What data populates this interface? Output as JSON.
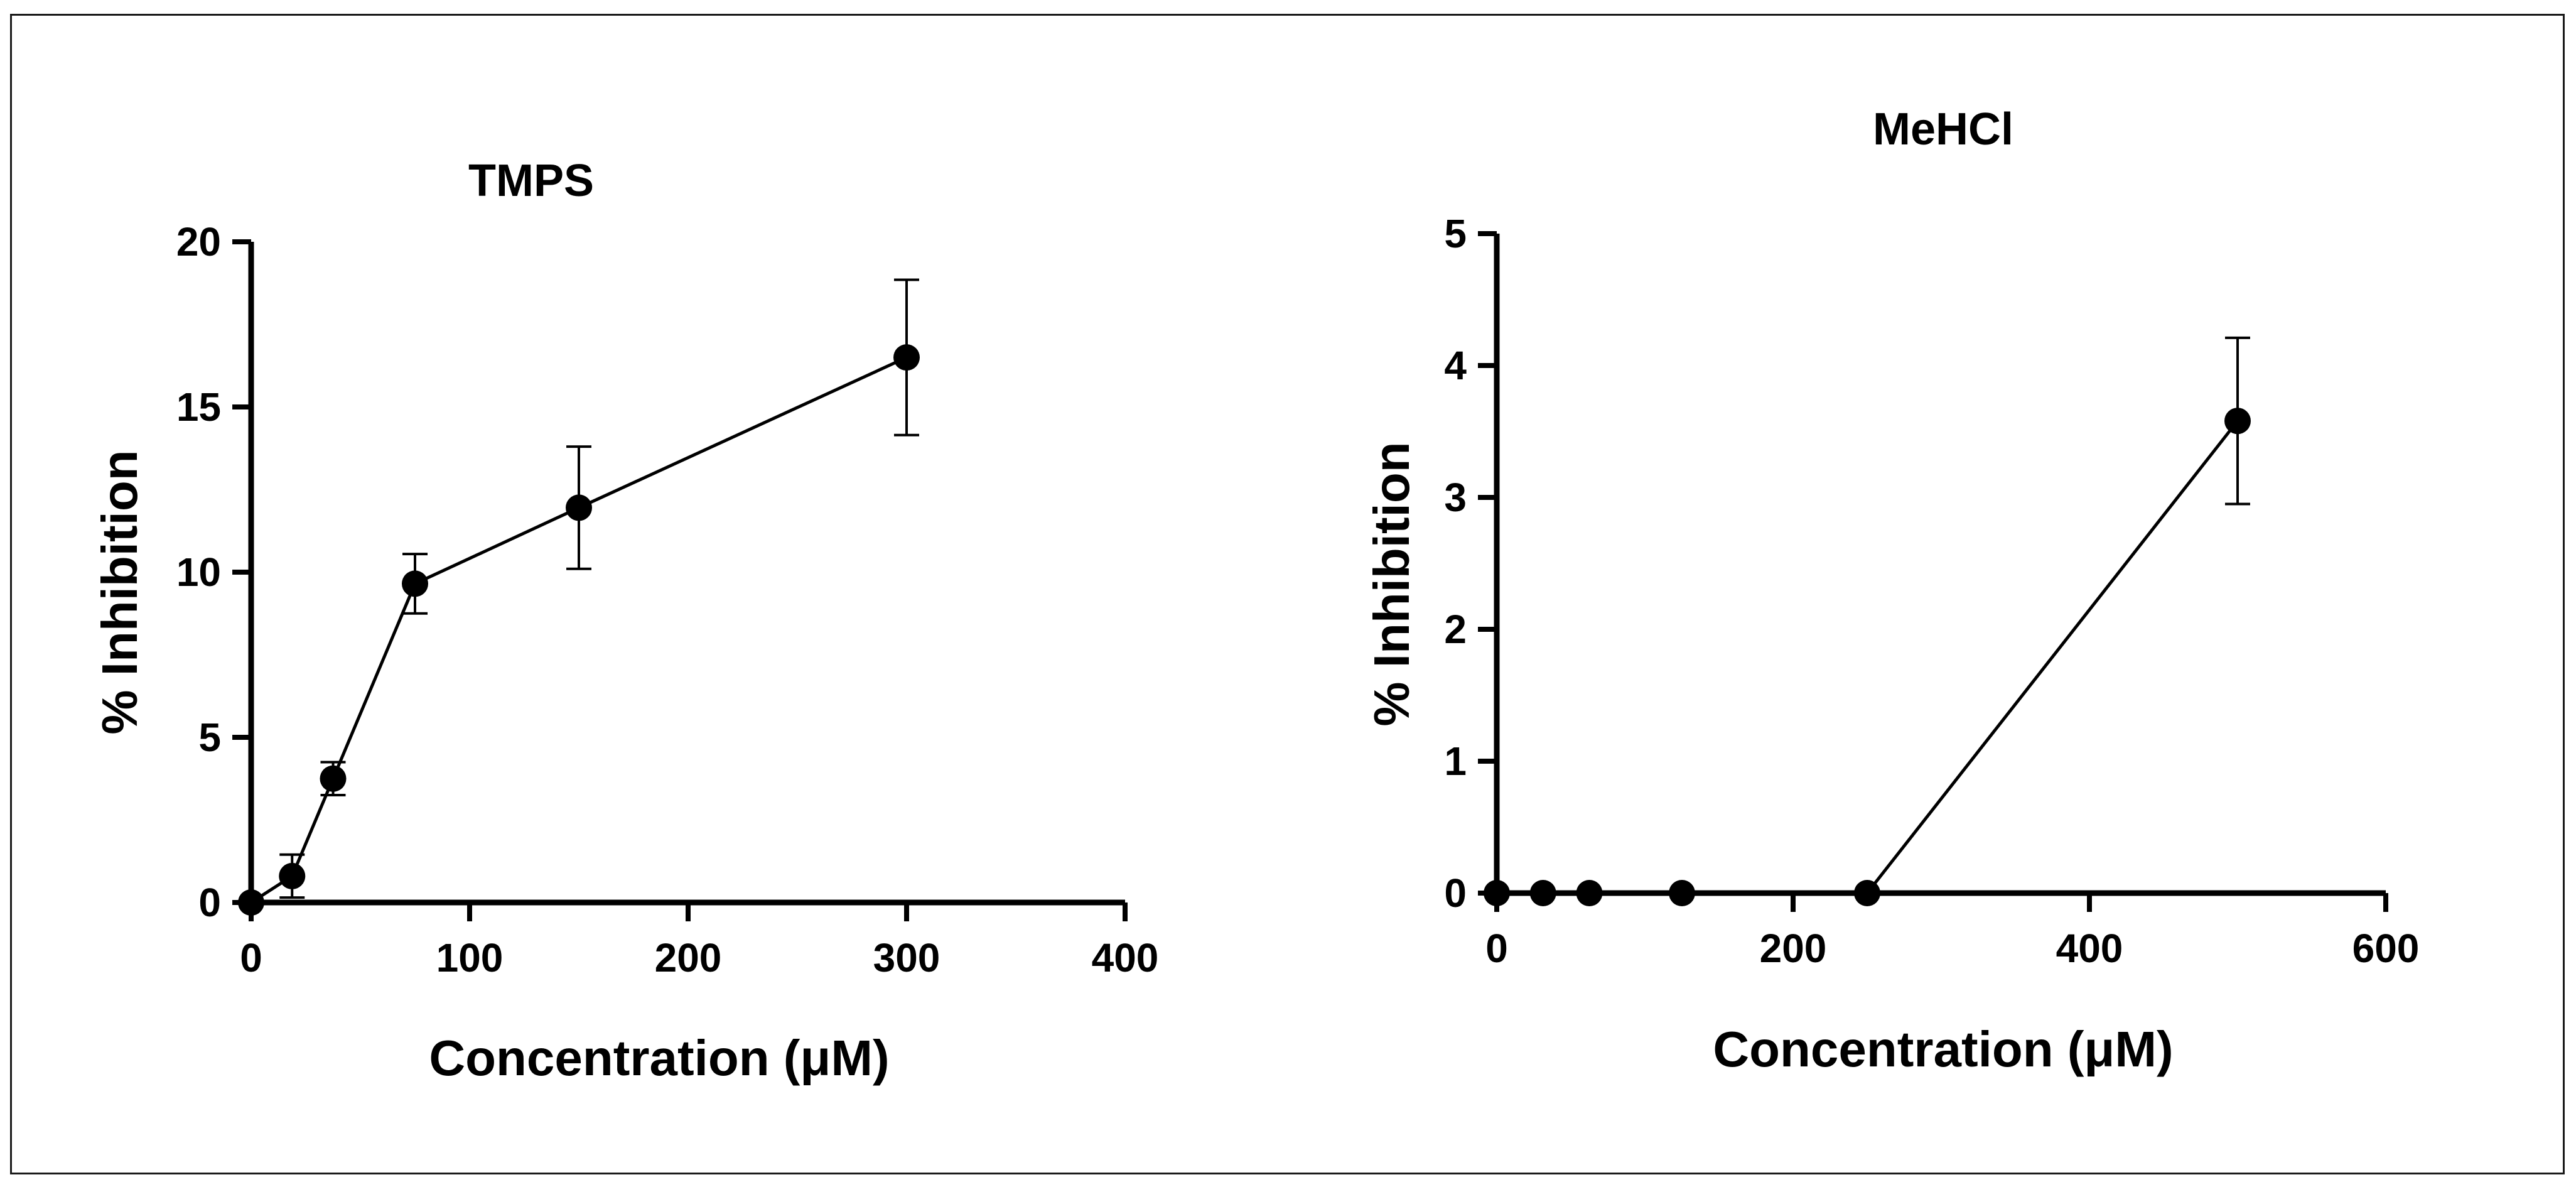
{
  "chart_data": [
    {
      "type": "line",
      "title": "TMPS",
      "xlabel": "Concentration (μM)",
      "ylabel": "% Inhibition",
      "xlim": [
        0,
        400
      ],
      "ylim": [
        0,
        20
      ],
      "xticks": [
        0,
        100,
        200,
        300,
        400
      ],
      "yticks": [
        0,
        5,
        10,
        15,
        20
      ],
      "xtick_labels": [
        "0",
        "100",
        "200",
        "300",
        "400"
      ],
      "ytick_labels": [
        "0",
        "5",
        "10",
        "15",
        "20"
      ],
      "grid": false,
      "series": [
        {
          "name": "TMPS",
          "x": [
            0,
            18.75,
            37.5,
            75,
            150,
            300
          ],
          "y": [
            0,
            0.8,
            3.75,
            9.65,
            11.95,
            16.5
          ],
          "err": [
            0.05,
            0.65,
            0.5,
            0.9,
            1.85,
            2.35
          ]
        }
      ]
    },
    {
      "type": "line",
      "title": "MeHCl",
      "xlabel": "Concentration (μM)",
      "ylabel": "% Inhibition",
      "xlim": [
        0,
        600
      ],
      "ylim": [
        0,
        5
      ],
      "xticks": [
        0,
        200,
        400,
        600
      ],
      "yticks": [
        0,
        1,
        2,
        3,
        4,
        5
      ],
      "xtick_labels": [
        "0",
        "200",
        "400",
        "600"
      ],
      "ytick_labels": [
        "0",
        "1",
        "2",
        "3",
        "4",
        "5"
      ],
      "grid": false,
      "series": [
        {
          "name": "MeHCl",
          "x": [
            0,
            31.25,
            62.5,
            125,
            250,
            500
          ],
          "y": [
            0,
            0,
            0,
            0,
            0,
            3.58
          ],
          "err": [
            0,
            0,
            0,
            0,
            0,
            0.63
          ]
        }
      ]
    }
  ],
  "style": {
    "line_color": "#000000",
    "marker_color": "#000000",
    "background": "#ffffff",
    "frame_color": "#1a1a1a"
  }
}
